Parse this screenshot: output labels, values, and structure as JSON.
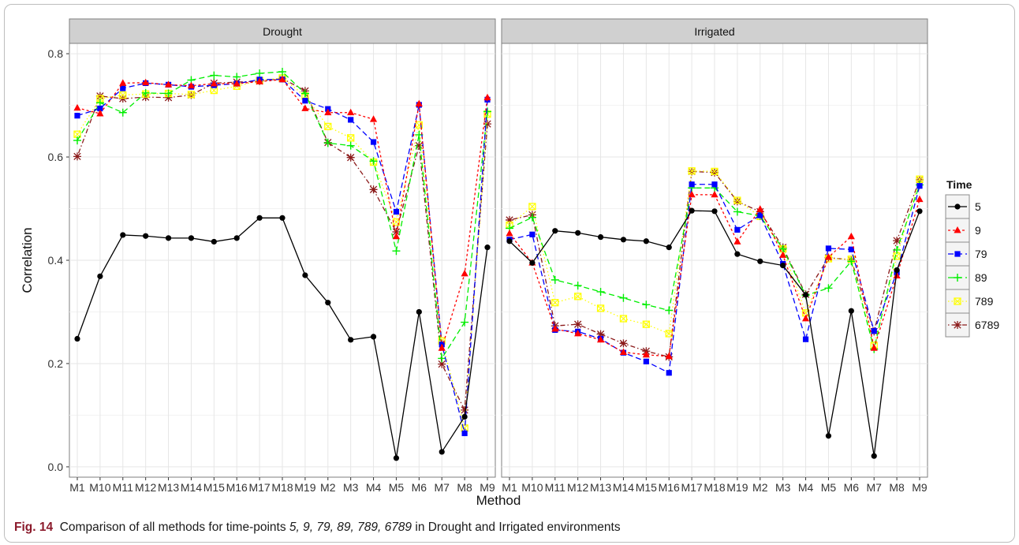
{
  "chart_data": {
    "type": "line",
    "xlabel": "Method",
    "ylabel": "Correlation",
    "ylim": [
      0,
      0.8
    ],
    "yticks": [
      0.0,
      0.2,
      0.4,
      0.6,
      0.8
    ],
    "ytick_labels": [
      "0.0",
      "0.2",
      "0.4",
      "0.6",
      "0.8"
    ],
    "categories": [
      "M1",
      "M10",
      "M11",
      "M12",
      "M13",
      "M14",
      "M15",
      "M16",
      "M17",
      "M18",
      "M19",
      "M2",
      "M3",
      "M4",
      "M5",
      "M6",
      "M7",
      "M8",
      "M9"
    ],
    "legend": {
      "title": "Time",
      "placement": "right"
    },
    "series_styles": [
      {
        "name": "5",
        "color": "#000000",
        "dash": "solid",
        "marker": "circle"
      },
      {
        "name": "9",
        "color": "#ff0000",
        "dash": "short",
        "marker": "triangle"
      },
      {
        "name": "79",
        "color": "#0000ff",
        "dash": "long",
        "marker": "square"
      },
      {
        "name": "89",
        "color": "#00ee00",
        "dash": "long",
        "marker": "plus"
      },
      {
        "name": "789",
        "color": "#ffff00",
        "dash": "dotted",
        "marker": "square-x"
      },
      {
        "name": "6789",
        "color": "#8b1a1a",
        "dash": "dotdash",
        "marker": "asterisk"
      }
    ],
    "panels": [
      {
        "title": "Drought",
        "series": [
          {
            "name": "5",
            "values": [
              0.248,
              0.369,
              0.449,
              0.447,
              0.443,
              0.443,
              0.436,
              0.443,
              0.482,
              0.482,
              0.371,
              0.318,
              0.246,
              0.252,
              0.017,
              0.3,
              0.029,
              0.097,
              0.425
            ]
          },
          {
            "name": "9",
            "values": [
              0.695,
              0.684,
              0.743,
              0.744,
              0.74,
              0.738,
              0.742,
              0.742,
              0.746,
              0.75,
              0.694,
              0.686,
              0.686,
              0.673,
              0.446,
              0.703,
              0.23,
              0.374,
              0.715
            ]
          },
          {
            "name": "79",
            "values": [
              0.68,
              0.694,
              0.733,
              0.743,
              0.74,
              0.736,
              0.739,
              0.742,
              0.75,
              0.75,
              0.709,
              0.693,
              0.672,
              0.629,
              0.494,
              0.701,
              0.237,
              0.065,
              0.711
            ]
          },
          {
            "name": "89",
            "values": [
              0.632,
              0.705,
              0.686,
              0.724,
              0.723,
              0.749,
              0.758,
              0.755,
              0.762,
              0.765,
              0.723,
              0.627,
              0.622,
              0.592,
              0.418,
              0.643,
              0.21,
              0.28,
              0.688
            ]
          },
          {
            "name": "789",
            "values": [
              0.644,
              0.713,
              0.72,
              0.722,
              0.723,
              0.721,
              0.729,
              0.737,
              0.748,
              0.753,
              0.718,
              0.659,
              0.637,
              0.59,
              0.474,
              0.662,
              0.244,
              0.075,
              0.683
            ]
          },
          {
            "name": "6789",
            "values": [
              0.601,
              0.718,
              0.713,
              0.716,
              0.715,
              0.72,
              0.743,
              0.745,
              0.747,
              0.752,
              0.728,
              0.628,
              0.599,
              0.537,
              0.455,
              0.622,
              0.199,
              0.11,
              0.664
            ]
          }
        ]
      },
      {
        "title": "Irrigated",
        "series": [
          {
            "name": "5",
            "values": [
              0.437,
              0.395,
              0.457,
              0.453,
              0.445,
              0.44,
              0.437,
              0.425,
              0.496,
              0.495,
              0.412,
              0.398,
              0.39,
              0.333,
              0.06,
              0.302,
              0.021,
              0.381,
              0.495
            ]
          },
          {
            "name": "9",
            "values": [
              0.452,
              0.395,
              0.267,
              0.258,
              0.246,
              0.222,
              0.217,
              0.214,
              0.527,
              0.527,
              0.436,
              0.499,
              0.41,
              0.287,
              0.406,
              0.446,
              0.23,
              0.37,
              0.518
            ]
          },
          {
            "name": "79",
            "values": [
              0.44,
              0.45,
              0.265,
              0.262,
              0.248,
              0.221,
              0.204,
              0.182,
              0.547,
              0.547,
              0.459,
              0.487,
              0.393,
              0.247,
              0.423,
              0.421,
              0.263,
              0.376,
              0.544
            ]
          },
          {
            "name": "89",
            "values": [
              0.462,
              0.483,
              0.362,
              0.351,
              0.339,
              0.327,
              0.314,
              0.303,
              0.54,
              0.54,
              0.494,
              0.486,
              0.422,
              0.332,
              0.346,
              0.398,
              0.228,
              0.42,
              0.546
            ]
          },
          {
            "name": "789",
            "values": [
              0.468,
              0.504,
              0.318,
              0.33,
              0.307,
              0.287,
              0.276,
              0.258,
              0.573,
              0.572,
              0.516,
              0.485,
              0.422,
              0.298,
              0.403,
              0.402,
              0.235,
              0.408,
              0.557
            ]
          },
          {
            "name": "6789",
            "values": [
              0.478,
              0.488,
              0.273,
              0.276,
              0.257,
              0.239,
              0.224,
              0.213,
              0.572,
              0.57,
              0.514,
              0.494,
              0.425,
              0.334,
              0.405,
              0.401,
              0.262,
              0.438,
              0.556
            ]
          }
        ]
      }
    ]
  },
  "caption": {
    "label": "Fig. 14",
    "text_before": "Comparison of all methods for time-points ",
    "timepoints": "5, 9, 79, 89, 789, 6789",
    "text_after": " in Drought and Irrigated environments"
  }
}
